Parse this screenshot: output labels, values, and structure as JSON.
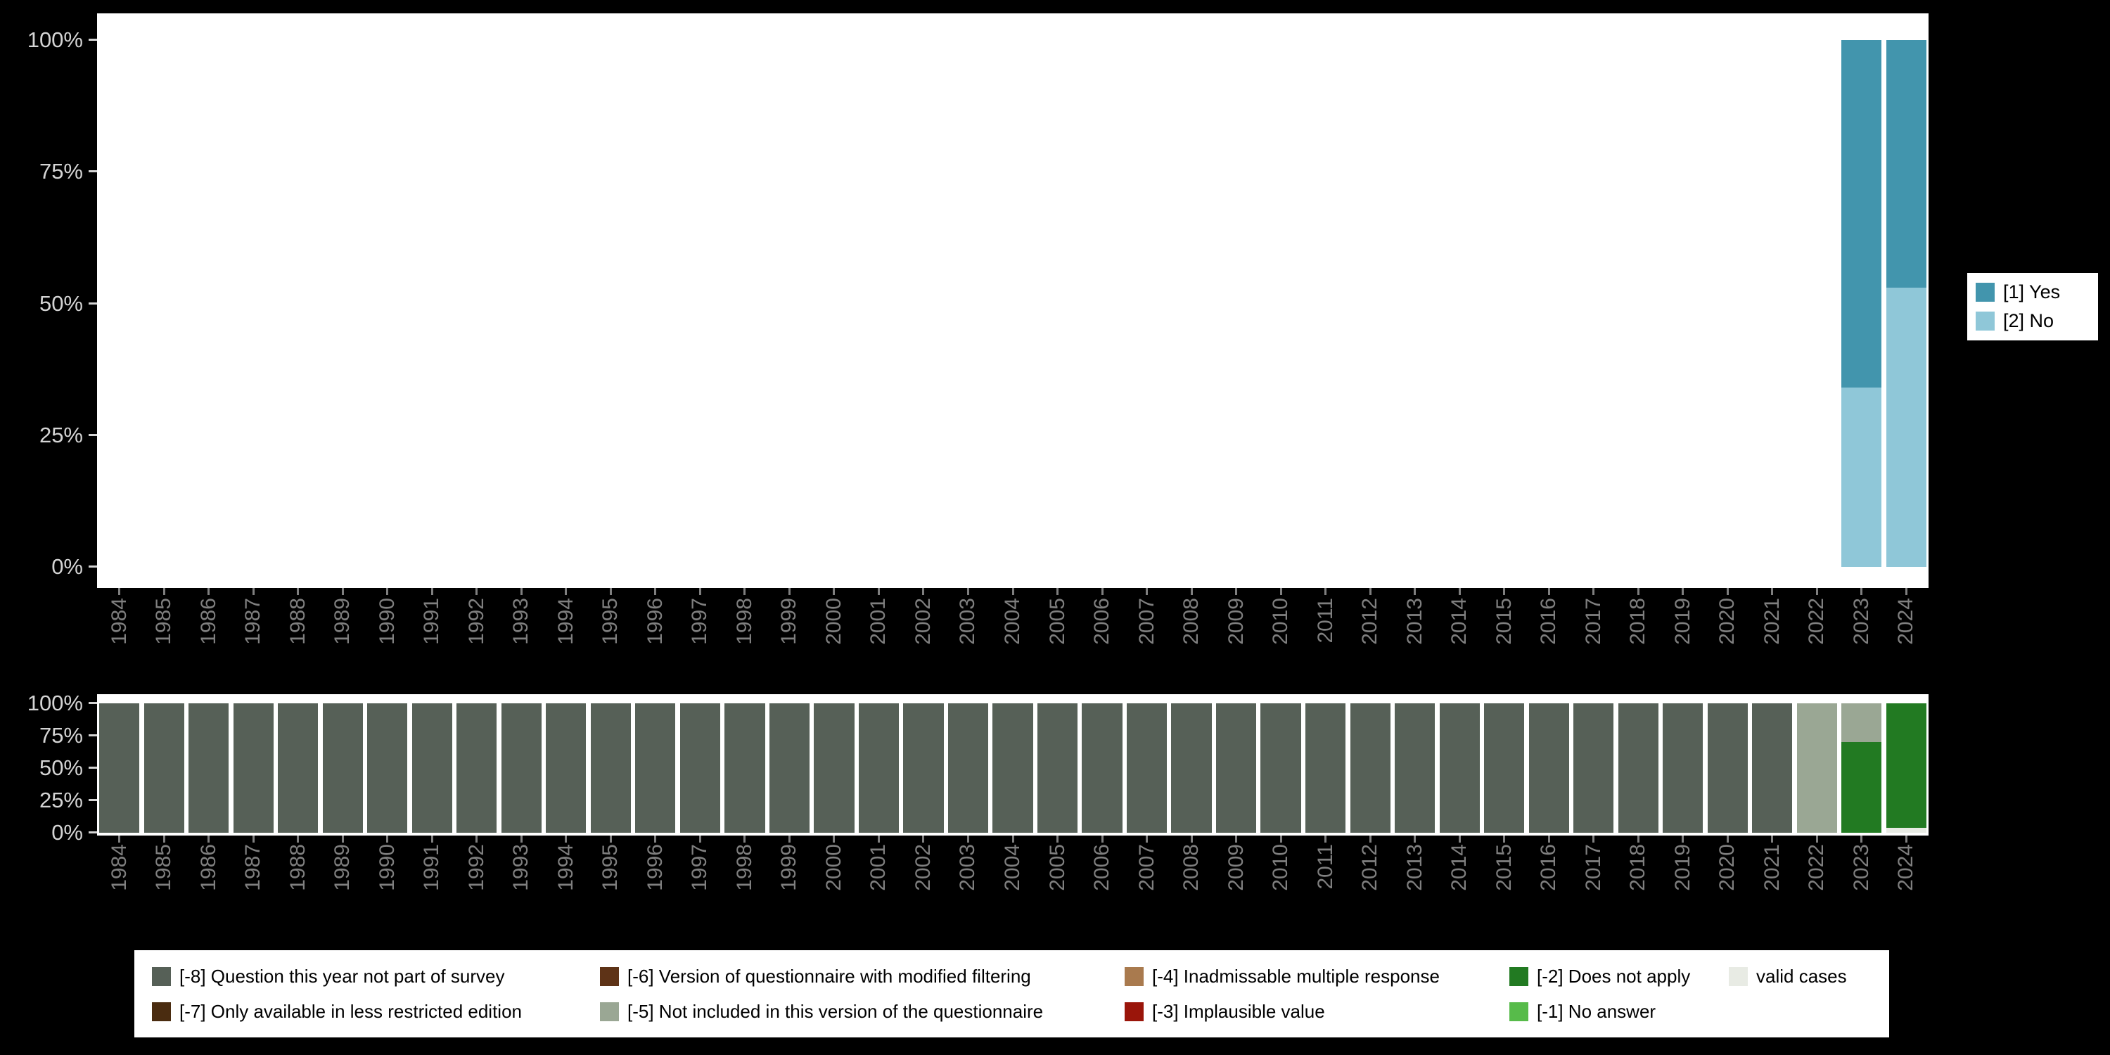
{
  "figure": {
    "background_color": "#000000",
    "plot_background_color": "#ffffff"
  },
  "chart_data": [
    {
      "name": "responses-by-year",
      "type": "bar",
      "stacked": true,
      "units": "percent",
      "title": "",
      "xlabel": "",
      "ylabel": "",
      "ylim": [
        0,
        100
      ],
      "grid": false,
      "legend_position": "right",
      "x_categories": [
        "1984",
        "1985",
        "1986",
        "1987",
        "1988",
        "1989",
        "1990",
        "1991",
        "1992",
        "1993",
        "1994",
        "1995",
        "1996",
        "1997",
        "1998",
        "1999",
        "2000",
        "2001",
        "2002",
        "2003",
        "2004",
        "2005",
        "2006",
        "2007",
        "2008",
        "2009",
        "2010",
        "2011",
        "2012",
        "2013",
        "2014",
        "2015",
        "2016",
        "2017",
        "2018",
        "2019",
        "2020",
        "2021",
        "2022",
        "2023",
        "2024"
      ],
      "y_ticks_top_to_bottom": [
        "100%",
        "75%",
        "50%",
        "25%",
        "0%"
      ],
      "bars_by_year": {
        "2023": [
          {
            "label": "[1] Yes",
            "value": 66
          },
          {
            "label": "[2] No",
            "value": 34
          }
        ],
        "2024": [
          {
            "label": "[1] Yes",
            "value": 47
          },
          {
            "label": "[2] No",
            "value": 53
          }
        ]
      }
    },
    {
      "name": "missing-values-by-year",
      "type": "bar",
      "stacked": true,
      "units": "percent",
      "title": "",
      "xlabel": "",
      "ylabel": "",
      "ylim": [
        0,
        100
      ],
      "grid": false,
      "legend_position": "bottom",
      "x_categories": [
        "1984",
        "1985",
        "1986",
        "1987",
        "1988",
        "1989",
        "1990",
        "1991",
        "1992",
        "1993",
        "1994",
        "1995",
        "1996",
        "1997",
        "1998",
        "1999",
        "2000",
        "2001",
        "2002",
        "2003",
        "2004",
        "2005",
        "2006",
        "2007",
        "2008",
        "2009",
        "2010",
        "2011",
        "2012",
        "2013",
        "2014",
        "2015",
        "2016",
        "2017",
        "2018",
        "2019",
        "2020",
        "2021",
        "2022",
        "2023",
        "2024"
      ],
      "y_ticks_top_to_bottom": [
        "100%",
        "75%",
        "50%",
        "25%",
        "0%"
      ],
      "bars_by_year": {
        "1984": [
          {
            "label": "[-8] Question this year not part of survey",
            "value": 100
          }
        ],
        "1985": [
          {
            "label": "[-8] Question this year not part of survey",
            "value": 100
          }
        ],
        "1986": [
          {
            "label": "[-8] Question this year not part of survey",
            "value": 100
          }
        ],
        "1987": [
          {
            "label": "[-8] Question this year not part of survey",
            "value": 100
          }
        ],
        "1988": [
          {
            "label": "[-8] Question this year not part of survey",
            "value": 100
          }
        ],
        "1989": [
          {
            "label": "[-8] Question this year not part of survey",
            "value": 100
          }
        ],
        "1990": [
          {
            "label": "[-8] Question this year not part of survey",
            "value": 100
          }
        ],
        "1991": [
          {
            "label": "[-8] Question this year not part of survey",
            "value": 100
          }
        ],
        "1992": [
          {
            "label": "[-8] Question this year not part of survey",
            "value": 100
          }
        ],
        "1993": [
          {
            "label": "[-8] Question this year not part of survey",
            "value": 100
          }
        ],
        "1994": [
          {
            "label": "[-8] Question this year not part of survey",
            "value": 100
          }
        ],
        "1995": [
          {
            "label": "[-8] Question this year not part of survey",
            "value": 100
          }
        ],
        "1996": [
          {
            "label": "[-8] Question this year not part of survey",
            "value": 100
          }
        ],
        "1997": [
          {
            "label": "[-8] Question this year not part of survey",
            "value": 100
          }
        ],
        "1998": [
          {
            "label": "[-8] Question this year not part of survey",
            "value": 100
          }
        ],
        "1999": [
          {
            "label": "[-8] Question this year not part of survey",
            "value": 100
          }
        ],
        "2000": [
          {
            "label": "[-8] Question this year not part of survey",
            "value": 100
          }
        ],
        "2001": [
          {
            "label": "[-8] Question this year not part of survey",
            "value": 100
          }
        ],
        "2002": [
          {
            "label": "[-8] Question this year not part of survey",
            "value": 100
          }
        ],
        "2003": [
          {
            "label": "[-8] Question this year not part of survey",
            "value": 100
          }
        ],
        "2004": [
          {
            "label": "[-8] Question this year not part of survey",
            "value": 100
          }
        ],
        "2005": [
          {
            "label": "[-8] Question this year not part of survey",
            "value": 100
          }
        ],
        "2006": [
          {
            "label": "[-8] Question this year not part of survey",
            "value": 100
          }
        ],
        "2007": [
          {
            "label": "[-8] Question this year not part of survey",
            "value": 100
          }
        ],
        "2008": [
          {
            "label": "[-8] Question this year not part of survey",
            "value": 100
          }
        ],
        "2009": [
          {
            "label": "[-8] Question this year not part of survey",
            "value": 100
          }
        ],
        "2010": [
          {
            "label": "[-8] Question this year not part of survey",
            "value": 100
          }
        ],
        "2011": [
          {
            "label": "[-8] Question this year not part of survey",
            "value": 100
          }
        ],
        "2012": [
          {
            "label": "[-8] Question this year not part of survey",
            "value": 100
          }
        ],
        "2013": [
          {
            "label": "[-8] Question this year not part of survey",
            "value": 100
          }
        ],
        "2014": [
          {
            "label": "[-8] Question this year not part of survey",
            "value": 100
          }
        ],
        "2015": [
          {
            "label": "[-8] Question this year not part of survey",
            "value": 100
          }
        ],
        "2016": [
          {
            "label": "[-8] Question this year not part of survey",
            "value": 100
          }
        ],
        "2017": [
          {
            "label": "[-8] Question this year not part of survey",
            "value": 100
          }
        ],
        "2018": [
          {
            "label": "[-8] Question this year not part of survey",
            "value": 100
          }
        ],
        "2019": [
          {
            "label": "[-8] Question this year not part of survey",
            "value": 100
          }
        ],
        "2020": [
          {
            "label": "[-8] Question this year not part of survey",
            "value": 100
          }
        ],
        "2021": [
          {
            "label": "[-8] Question this year not part of survey",
            "value": 100
          }
        ],
        "2022": [
          {
            "label": "[-5] Not included in this version of the questionnaire",
            "value": 100
          }
        ],
        "2023": [
          {
            "label": "[-5] Not included in this version of the questionnaire",
            "value": 30
          },
          {
            "label": "[-2] Does not apply",
            "value": 70
          }
        ],
        "2024": [
          {
            "label": "[-2] Does not apply",
            "value": 96
          },
          {
            "label": "valid cases",
            "value": 4
          }
        ]
      }
    }
  ],
  "legends": {
    "responses": {
      "items": [
        {
          "label": "[1] Yes",
          "color": "#4295ad"
        },
        {
          "label": "[2] No",
          "color": "#8fc7d8"
        }
      ]
    },
    "missing_values": {
      "rows": [
        [
          {
            "label": "[-8] Question this year not part of survey",
            "color": "#566057"
          },
          {
            "label": "[-6] Version of questionnaire with modified filtering",
            "color": "#5e3317"
          },
          {
            "label": "[-4] Inadmissable multiple response",
            "color": "#a97a4e"
          },
          {
            "label": "[-2] Does not apply",
            "color": "#227a22"
          },
          {
            "label": "valid cases",
            "color": "#e8ebe4"
          }
        ],
        [
          {
            "label": "[-7] Only available in less restricted edition",
            "color": "#4a2c10"
          },
          {
            "label": "[-5] Not included in this version of the questionnaire",
            "color": "#9aa794"
          },
          {
            "label": "[-3] Implausible value",
            "color": "#9a150a"
          },
          {
            "label": "[-1] No answer",
            "color": "#57bb4a"
          }
        ]
      ]
    }
  }
}
